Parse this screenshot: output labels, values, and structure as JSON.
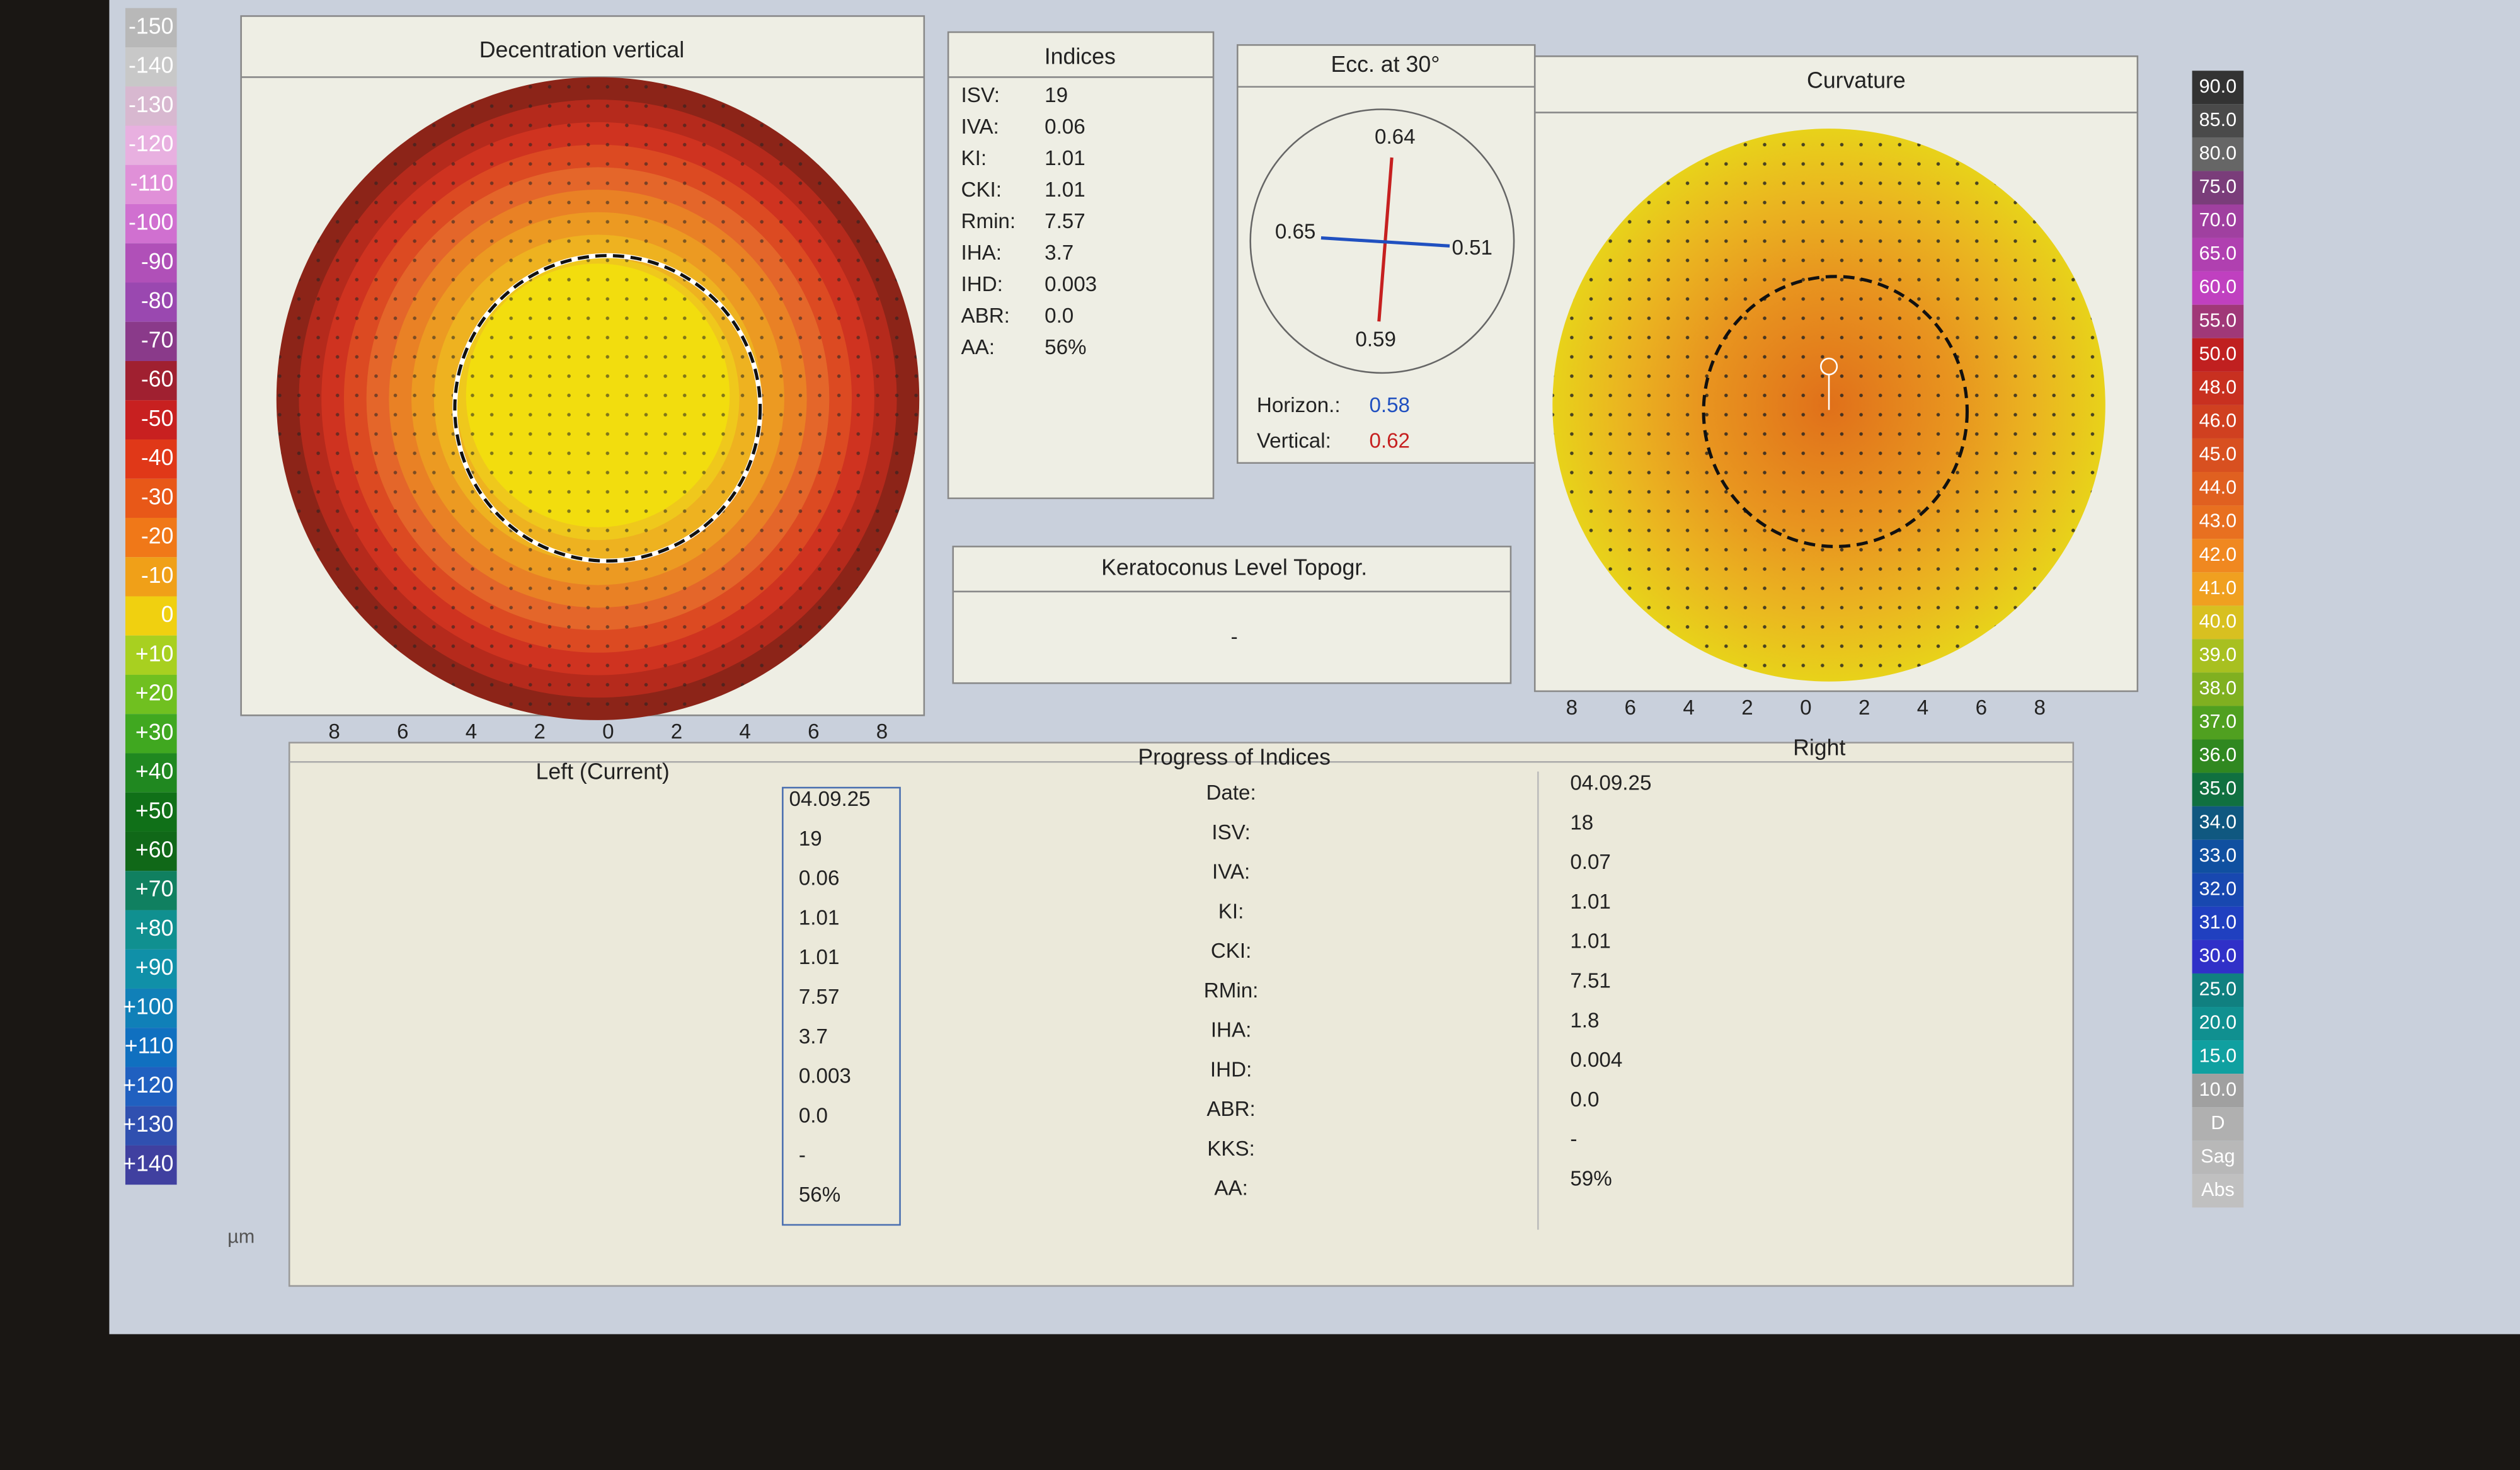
{
  "left_scale": {
    "labels": [
      "-150",
      "-140",
      "-130",
      "-120",
      "-110",
      "-100",
      "-90",
      "-80",
      "-70",
      "-60",
      "-50",
      "-40",
      "-30",
      "-20",
      "-10",
      "0",
      "+10",
      "+20",
      "+30",
      "+40",
      "+50",
      "+60",
      "+70",
      "+80",
      "+90",
      "+100",
      "+110",
      "+120",
      "+130",
      "+140"
    ],
    "unit": "µm"
  },
  "decentration": {
    "title": "Decentration vertical",
    "axis_ticks": [
      "8",
      "6",
      "4",
      "2",
      "0",
      "2",
      "4",
      "6",
      "8"
    ]
  },
  "indices": {
    "title": "Indices",
    "rows": [
      [
        "ISV:",
        "19"
      ],
      [
        "IVA:",
        "0.06"
      ],
      [
        "KI:",
        "1.01"
      ],
      [
        "CKI:",
        "1.01"
      ],
      [
        "Rmin:",
        "7.57"
      ],
      [
        "IHA:",
        "3.7"
      ],
      [
        "IHD:",
        "0.003"
      ],
      [
        "ABR:",
        "0.0"
      ],
      [
        "AA:",
        "56%"
      ]
    ]
  },
  "eccentricity": {
    "title": "Ecc. at 30°",
    "top": "0.64",
    "left": "0.65",
    "right": "0.51",
    "bottom": "0.59",
    "horizontal_label": "Horizon.:",
    "horizontal_value": "0.58",
    "vertical_label": "Vertical:",
    "vertical_value": "0.62"
  },
  "keratoconus": {
    "title": "Keratoconus Level Topogr.",
    "value": "-"
  },
  "curvature": {
    "title": "Curvature",
    "axis_ticks": [
      "8",
      "6",
      "4",
      "2",
      "0",
      "2",
      "4",
      "6",
      "8"
    ]
  },
  "right_scale": {
    "labels": [
      "90.0",
      "85.0",
      "80.0",
      "75.0",
      "70.0",
      "65.0",
      "60.0",
      "55.0",
      "50.0",
      "48.0",
      "46.0",
      "45.0",
      "44.0",
      "43.0",
      "42.0",
      "41.0",
      "40.0",
      "39.0",
      "38.0",
      "37.0",
      "36.0",
      "35.0",
      "34.0",
      "33.0",
      "32.0",
      "31.0",
      "30.0",
      "25.0",
      "20.0",
      "15.0",
      "10.0",
      "D",
      "Sag",
      "Abs"
    ]
  },
  "progress": {
    "title": "Progress of Indices",
    "left_title": "Left (Current)",
    "right_title": "Right",
    "row_labels": [
      "Date:",
      "ISV:",
      "IVA:",
      "KI:",
      "CKI:",
      "RMin:",
      "IHA:",
      "IHD:",
      "ABR:",
      "KKS:",
      "AA:"
    ],
    "left_values": [
      "04.09.25",
      "19",
      "0.06",
      "1.01",
      "1.01",
      "7.57",
      "3.7",
      "0.003",
      "0.0",
      "-",
      "56%"
    ],
    "right_values": [
      "04.09.25",
      "18",
      "0.07",
      "1.01",
      "1.01",
      "7.51",
      "1.8",
      "0.004",
      "0.0",
      "-",
      "59%"
    ]
  }
}
